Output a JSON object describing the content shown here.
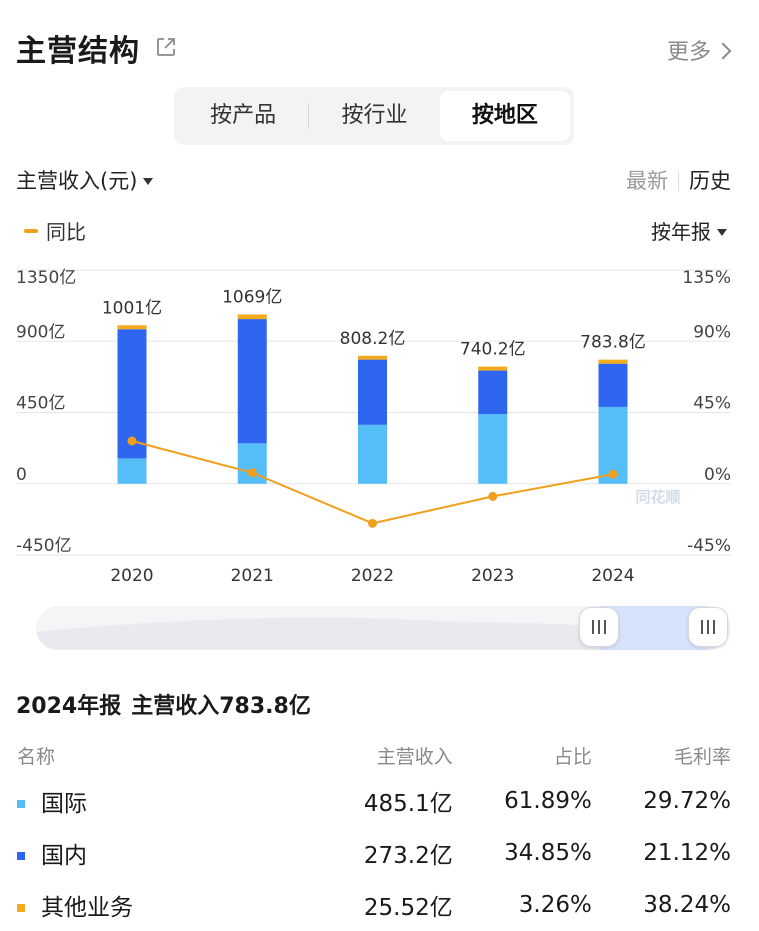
{
  "header": {
    "title": "主营结构",
    "more_label": "更多"
  },
  "tabs": [
    {
      "label": "按产品",
      "active": false
    },
    {
      "label": "按行业",
      "active": false
    },
    {
      "label": "按地区",
      "active": true
    }
  ],
  "toolbar": {
    "metric_label": "主营收入(元)",
    "latest_label": "最新",
    "history_label": "历史",
    "legend_label": "同比",
    "period_label": "按年报"
  },
  "colors": {
    "international": "#55bdf8",
    "domestic": "#2f66f0",
    "other": "#f3aa1c",
    "yoy_line": "#f0a01c"
  },
  "chart_data": {
    "type": "bar",
    "categories": [
      "2020",
      "2021",
      "2022",
      "2023",
      "2024"
    ],
    "series": [
      {
        "name": "国际",
        "values": [
          160,
          255,
          372,
          440,
          485.1
        ]
      },
      {
        "name": "国内",
        "values": [
          816,
          785,
          412,
          275,
          273.2
        ]
      },
      {
        "name": "其他业务",
        "values": [
          25,
          29,
          24.2,
          25.2,
          25.52
        ]
      }
    ],
    "totals": [
      1001,
      1069,
      808.2,
      740.2,
      783.8
    ],
    "total_labels": [
      "1001亿",
      "1069亿",
      "808.2亿",
      "740.2亿",
      "783.8亿"
    ],
    "yoy": [
      27,
      7,
      -25,
      -8,
      6
    ],
    "ylim": [
      -450,
      1350
    ],
    "y_ticks": [
      "1350亿",
      "900亿",
      "450亿",
      "0",
      "-450亿"
    ],
    "y2lim": [
      -45,
      135
    ],
    "y2_ticks": [
      "135%",
      "90%",
      "45%",
      "0%",
      "-45%"
    ],
    "watermark": "同花顺",
    "grid": true
  },
  "range_slider": {
    "selected_range": [
      "2020",
      "2024"
    ]
  },
  "summary": {
    "period": "2024年报",
    "label": "主营收入783.8亿"
  },
  "table": {
    "headers": [
      "名称",
      "主营收入",
      "占比",
      "毛利率"
    ],
    "rows": [
      {
        "name": "国际",
        "revenue": "485.1亿",
        "share": "61.89%",
        "margin": "29.72%",
        "color": "#55bdf8"
      },
      {
        "name": "国内",
        "revenue": "273.2亿",
        "share": "34.85%",
        "margin": "21.12%",
        "color": "#2f66f0"
      },
      {
        "name": "其他业务",
        "revenue": "25.52亿",
        "share": "3.26%",
        "margin": "38.24%",
        "color": "#f3aa1c"
      }
    ]
  }
}
